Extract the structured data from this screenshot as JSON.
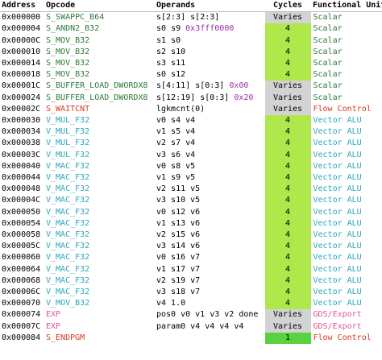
{
  "headers": {
    "address": "Address",
    "opcode": "Opcode",
    "operands": "Operands",
    "cycles": "Cycles",
    "unit": "Functional Unit"
  },
  "colors": {
    "scalar": "#2d7a3b",
    "flow_control": "#d63a1c",
    "vector_alu": "#2aa7b8",
    "gds_export": "#e0559a",
    "cycles_varies": "#d3d3d3",
    "cycles_fixed": "#aee84a",
    "cycles_last": "#58d23f"
  },
  "rows": [
    {
      "address": "0x000000",
      "opcode": "S_SWAPPC_B64",
      "operands": [
        [
          "s[2:3]",
          "r"
        ],
        [
          " ",
          "t"
        ],
        [
          "s[2:3]",
          "r"
        ]
      ],
      "cycles": "Varies",
      "unit": "Scalar",
      "kind": "scalar"
    },
    {
      "address": "0x000004",
      "opcode": "S_ANDN2_B32",
      "operands": [
        [
          "s0",
          "r"
        ],
        [
          " ",
          "t"
        ],
        [
          "s9",
          "r"
        ],
        [
          " ",
          "t"
        ],
        [
          "0x3fff0000",
          "i"
        ]
      ],
      "cycles": "4",
      "unit": "Scalar",
      "kind": "scalar"
    },
    {
      "address": "0x00000C",
      "opcode": "S_MOV_B32",
      "operands": [
        [
          "s1 s0",
          "t"
        ]
      ],
      "cycles": "4",
      "unit": "Scalar",
      "kind": "scalar"
    },
    {
      "address": "0x000010",
      "opcode": "S_MOV_B32",
      "operands": [
        [
          "s2 s10",
          "t"
        ]
      ],
      "cycles": "4",
      "unit": "Scalar",
      "kind": "scalar"
    },
    {
      "address": "0x000014",
      "opcode": "S_MOV_B32",
      "operands": [
        [
          "s3 s11",
          "t"
        ]
      ],
      "cycles": "4",
      "unit": "Scalar",
      "kind": "scalar"
    },
    {
      "address": "0x000018",
      "opcode": "S_MOV_B32",
      "operands": [
        [
          "s0 s12",
          "t"
        ]
      ],
      "cycles": "4",
      "unit": "Scalar",
      "kind": "scalar"
    },
    {
      "address": "0x00001C",
      "opcode": "S_BUFFER_LOAD_DWORDX8",
      "operands": [
        [
          "s[4:11]",
          "r"
        ],
        [
          " ",
          "t"
        ],
        [
          "s[0:3]",
          "r"
        ],
        [
          " ",
          "t"
        ],
        [
          "0x00",
          "i"
        ]
      ],
      "cycles": "Varies",
      "unit": "Scalar",
      "kind": "scalar"
    },
    {
      "address": "0x000024",
      "opcode": "S_BUFFER_LOAD_DWORDX8",
      "operands": [
        [
          "s[12:19]",
          "r"
        ],
        [
          " ",
          "t"
        ],
        [
          "s[0:3]",
          "r"
        ],
        [
          " ",
          "t"
        ],
        [
          "0x20",
          "i"
        ]
      ],
      "cycles": "Varies",
      "unit": "Scalar",
      "kind": "scalar"
    },
    {
      "address": "0x00002C",
      "opcode": "S_WAITCNT",
      "operands": [
        [
          "lgkmcnt(0)",
          "t"
        ]
      ],
      "cycles": "Varies",
      "unit": "Flow Control",
      "kind": "flow"
    },
    {
      "address": "0x000030",
      "opcode": "V_MUL_F32",
      "operands": [
        [
          "v0 s4 v4",
          "t"
        ]
      ],
      "cycles": "4",
      "unit": "Vector ALU",
      "kind": "valu"
    },
    {
      "address": "0x000034",
      "opcode": "V_MUL_F32",
      "operands": [
        [
          "v1 s5 v4",
          "t"
        ]
      ],
      "cycles": "4",
      "unit": "Vector ALU",
      "kind": "valu"
    },
    {
      "address": "0x000038",
      "opcode": "V_MUL_F32",
      "operands": [
        [
          "v2 s7 v4",
          "t"
        ]
      ],
      "cycles": "4",
      "unit": "Vector ALU",
      "kind": "valu"
    },
    {
      "address": "0x00003C",
      "opcode": "V_MUL_F32",
      "operands": [
        [
          "v3 s6 v4",
          "t"
        ]
      ],
      "cycles": "4",
      "unit": "Vector ALU",
      "kind": "valu"
    },
    {
      "address": "0x000040",
      "opcode": "V_MAC_F32",
      "operands": [
        [
          "v0 s8 v5",
          "t"
        ]
      ],
      "cycles": "4",
      "unit": "Vector ALU",
      "kind": "valu"
    },
    {
      "address": "0x000044",
      "opcode": "V_MAC_F32",
      "operands": [
        [
          "v1 s9 v5",
          "t"
        ]
      ],
      "cycles": "4",
      "unit": "Vector ALU",
      "kind": "valu"
    },
    {
      "address": "0x000048",
      "opcode": "V_MAC_F32",
      "operands": [
        [
          "v2 s11 v5",
          "t"
        ]
      ],
      "cycles": "4",
      "unit": "Vector ALU",
      "kind": "valu"
    },
    {
      "address": "0x00004C",
      "opcode": "V_MAC_F32",
      "operands": [
        [
          "v3 s10 v5",
          "t"
        ]
      ],
      "cycles": "4",
      "unit": "Vector ALU",
      "kind": "valu"
    },
    {
      "address": "0x000050",
      "opcode": "V_MAC_F32",
      "operands": [
        [
          "v0 s12 v6",
          "t"
        ]
      ],
      "cycles": "4",
      "unit": "Vector ALU",
      "kind": "valu"
    },
    {
      "address": "0x000054",
      "opcode": "V_MAC_F32",
      "operands": [
        [
          "v1 s13 v6",
          "t"
        ]
      ],
      "cycles": "4",
      "unit": "Vector ALU",
      "kind": "valu"
    },
    {
      "address": "0x000058",
      "opcode": "V_MAC_F32",
      "operands": [
        [
          "v2 s15 v6",
          "t"
        ]
      ],
      "cycles": "4",
      "unit": "Vector ALU",
      "kind": "valu"
    },
    {
      "address": "0x00005C",
      "opcode": "V_MAC_F32",
      "operands": [
        [
          "v3 s14 v6",
          "t"
        ]
      ],
      "cycles": "4",
      "unit": "Vector ALU",
      "kind": "valu"
    },
    {
      "address": "0x000060",
      "opcode": "V_MAC_F32",
      "operands": [
        [
          "v0 s16 v7",
          "t"
        ]
      ],
      "cycles": "4",
      "unit": "Vector ALU",
      "kind": "valu"
    },
    {
      "address": "0x000064",
      "opcode": "V_MAC_F32",
      "operands": [
        [
          "v1 s17 v7",
          "t"
        ]
      ],
      "cycles": "4",
      "unit": "Vector ALU",
      "kind": "valu"
    },
    {
      "address": "0x000068",
      "opcode": "V_MAC_F32",
      "operands": [
        [
          "v2 s19 v7",
          "t"
        ]
      ],
      "cycles": "4",
      "unit": "Vector ALU",
      "kind": "valu"
    },
    {
      "address": "0x00006C",
      "opcode": "V_MAC_F32",
      "operands": [
        [
          "v3 s18 v7",
          "t"
        ]
      ],
      "cycles": "4",
      "unit": "Vector ALU",
      "kind": "valu"
    },
    {
      "address": "0x000070",
      "opcode": "V_MOV_B32",
      "operands": [
        [
          "v4 1.0",
          "t"
        ]
      ],
      "cycles": "4",
      "unit": "Vector ALU",
      "kind": "valu"
    },
    {
      "address": "0x000074",
      "opcode": "EXP",
      "operands": [
        [
          "pos0 v0 v1 v3 v2 done",
          "t"
        ]
      ],
      "cycles": "Varies",
      "unit": "GDS/Export",
      "kind": "exp"
    },
    {
      "address": "0x00007C",
      "opcode": "EXP",
      "operands": [
        [
          "param0 v4 v4 v4 v4",
          "t"
        ]
      ],
      "cycles": "Varies",
      "unit": "GDS/Export",
      "kind": "exp"
    },
    {
      "address": "0x000084",
      "opcode": "S_ENDPGM",
      "operands": [],
      "cycles": "1",
      "unit": "Flow Control",
      "kind": "flow",
      "cycles_style": "last"
    }
  ]
}
